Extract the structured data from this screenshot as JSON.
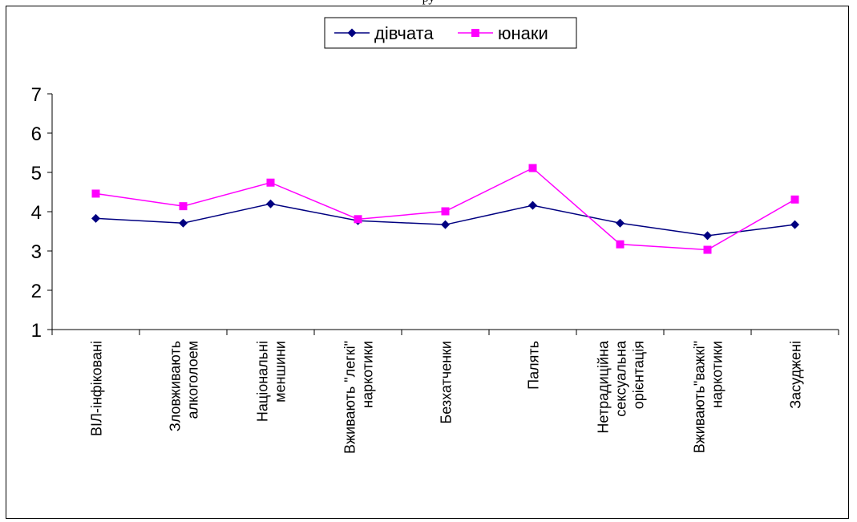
{
  "top_cut_text": "ру",
  "chart_data": {
    "type": "line",
    "categories": [
      [
        "ВІЛ-інфіковані"
      ],
      [
        "Зловживають",
        "алкоголоем"
      ],
      [
        "Національні",
        "меншини"
      ],
      [
        "Вживають \"легкі\"",
        "наркотики"
      ],
      [
        "Безхатченки"
      ],
      [
        "Палять"
      ],
      [
        "Нетрадиційна",
        "сексуальна",
        "орієнтація"
      ],
      [
        "Вживають\"важкі\"",
        "наркотики"
      ],
      [
        "Засуджені"
      ]
    ],
    "series": [
      {
        "name": "дівчата",
        "color": "#000080",
        "marker": "diamond",
        "values": [
          3.83,
          3.71,
          4.2,
          3.77,
          3.67,
          4.16,
          3.71,
          3.39,
          3.67
        ]
      },
      {
        "name": "юнаки",
        "color": "#ff00ff",
        "marker": "square",
        "values": [
          4.46,
          4.14,
          4.74,
          3.81,
          4.01,
          5.11,
          3.17,
          3.03,
          4.31
        ]
      }
    ],
    "ylim": [
      1,
      7
    ],
    "yticks": [
      1,
      2,
      3,
      4,
      5,
      6,
      7
    ],
    "grid": false,
    "legend": "top-center"
  }
}
